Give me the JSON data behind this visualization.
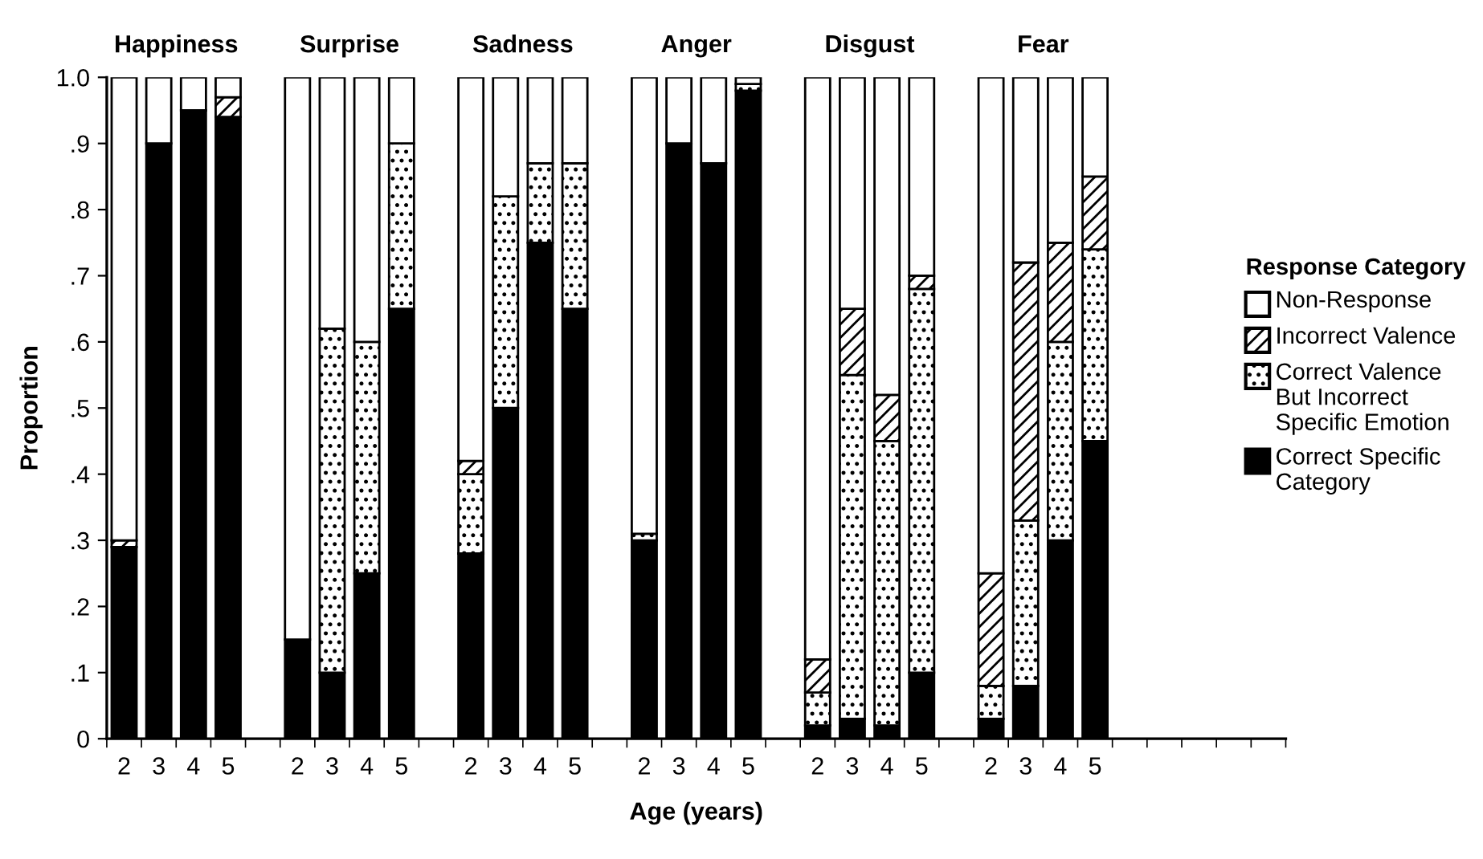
{
  "chart_data": {
    "type": "bar",
    "stacked": true,
    "xlabel": "Age (years)",
    "ylabel": "Proportion",
    "legend_title": "Response Category",
    "legend": "right",
    "grid": false,
    "annotations": [
      "Happiness",
      "Surprise",
      "Sadness",
      "Anger",
      "Disgust",
      "Fear"
    ],
    "categories": [
      "2",
      "3",
      "4",
      "5",
      null,
      "2",
      "3",
      "4",
      "5",
      null,
      "2",
      "3",
      "4",
      "5",
      null,
      "2",
      "3",
      "4",
      "5",
      null,
      "2",
      "3",
      "4",
      "5",
      null,
      "2",
      "3",
      "4",
      "5",
      null,
      null,
      null,
      null,
      null
    ],
    "ylim": [
      0,
      1.0
    ],
    "yticks": [
      0,
      {
        "value": 0.1,
        "label": ".1"
      },
      {
        "value": 0.2,
        "label": ".2"
      },
      {
        "value": 0.3,
        "label": ".3"
      },
      {
        "value": 0.4,
        "label": ".4"
      },
      {
        "value": 0.5,
        "label": ".5"
      },
      {
        "value": 0.6,
        "label": ".6"
      },
      {
        "value": 0.7,
        "label": ".7"
      },
      {
        "value": 0.8,
        "label": ".8"
      },
      {
        "value": 0.9,
        "label": ".9"
      },
      {
        "value": 1.0,
        "label": "1.0"
      }
    ],
    "series": [
      {
        "name": "Correct Specific Category",
        "color": "#000000",
        "values": [
          0.29,
          0.9,
          0.95,
          0.94,
          null,
          0.15,
          0.1,
          0.25,
          0.65,
          null,
          0.28,
          0.5,
          0.75,
          0.65,
          null,
          0.3,
          0.9,
          0.87,
          0.98,
          null,
          0.02,
          0.03,
          0.02,
          0.1,
          null,
          0.03,
          0.08,
          0.3,
          0.45,
          null,
          null,
          null,
          null,
          null
        ]
      },
      {
        "name": "Correct Valence But Incorrect Specific Emotion",
        "color": "#000000",
        "values": [
          0,
          0,
          0,
          0,
          null,
          0,
          0.52,
          0.35,
          0.25,
          null,
          0.12,
          0.32,
          0.12,
          0.22,
          null,
          0.01,
          0,
          0,
          0.01,
          null,
          0.05,
          0.52,
          0.43,
          0.58,
          null,
          0.05,
          0.25,
          0.3,
          0.29,
          null,
          null,
          null,
          null,
          null
        ]
      },
      {
        "name": "Incorrect Valence",
        "color": "#000000",
        "values": [
          0.01,
          0,
          0,
          0.03,
          null,
          0,
          0,
          0,
          0,
          null,
          0.02,
          0,
          0,
          0,
          null,
          0,
          0,
          0,
          0,
          null,
          0.05,
          0.1,
          0.07,
          0.02,
          null,
          0.17,
          0.39,
          0.15,
          0.11,
          null,
          null,
          null,
          null,
          null
        ]
      },
      {
        "name": "Non-Response",
        "color": "#ffffff",
        "values": [
          0.7,
          0.1,
          0.05,
          0.03,
          null,
          0.85,
          0.38,
          0.4,
          0.1,
          null,
          0.58,
          0.18,
          0.13,
          0.13,
          null,
          0.69,
          0.1,
          0.13,
          0.01,
          null,
          0.88,
          0.35,
          0.48,
          0.3,
          null,
          0.75,
          0.28,
          0.25,
          0.15,
          null,
          null,
          null,
          null,
          null
        ]
      }
    ]
  }
}
